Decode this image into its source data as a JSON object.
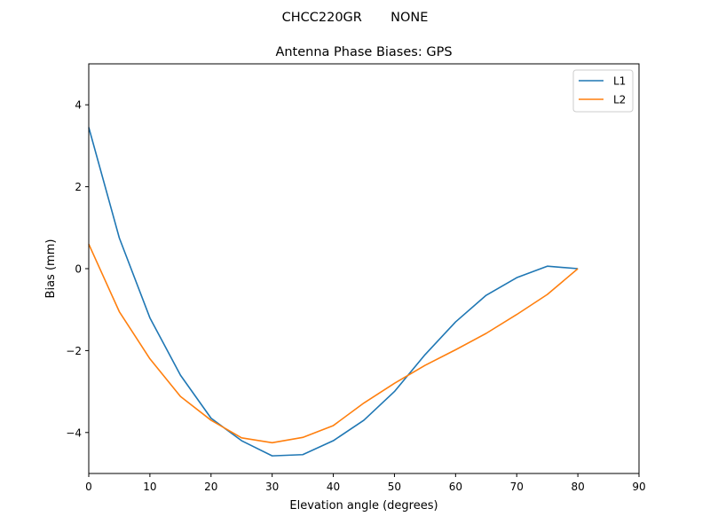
{
  "figure": {
    "suptitle": "CHCC220GR       NONE"
  },
  "chart_data": {
    "type": "line",
    "title": "Antenna Phase Biases: GPS",
    "xlabel": "Elevation angle (degrees)",
    "ylabel": "Bias (mm)",
    "xlim": [
      0,
      90
    ],
    "ylim": [
      -5,
      5
    ],
    "xticks": [
      0,
      10,
      20,
      30,
      40,
      50,
      60,
      70,
      80,
      90
    ],
    "yticks": [
      -4,
      -2,
      0,
      2,
      4
    ],
    "ytick_labels": [
      "−4",
      "−2",
      "0",
      "2",
      "4"
    ],
    "xtick_labels": [
      "0",
      "10",
      "20",
      "30",
      "40",
      "50",
      "60",
      "70",
      "80",
      "90"
    ],
    "grid": false,
    "legend_position": "upper right",
    "x": [
      0,
      5,
      10,
      15,
      20,
      25,
      30,
      35,
      40,
      45,
      50,
      55,
      60,
      65,
      70,
      75,
      80
    ],
    "series": [
      {
        "name": "L1",
        "color": "#1f77b4",
        "values": [
          3.45,
          0.75,
          -1.2,
          -2.6,
          -3.65,
          -4.2,
          -4.57,
          -4.54,
          -4.2,
          -3.7,
          -3.0,
          -2.1,
          -1.3,
          -0.65,
          -0.22,
          0.06,
          0.0
        ]
      },
      {
        "name": "L2",
        "color": "#ff7f0e",
        "values": [
          0.6,
          -1.05,
          -2.2,
          -3.12,
          -3.7,
          -4.13,
          -4.25,
          -4.12,
          -3.83,
          -3.28,
          -2.8,
          -2.36,
          -1.98,
          -1.58,
          -1.12,
          -0.63,
          0.0
        ]
      }
    ]
  }
}
